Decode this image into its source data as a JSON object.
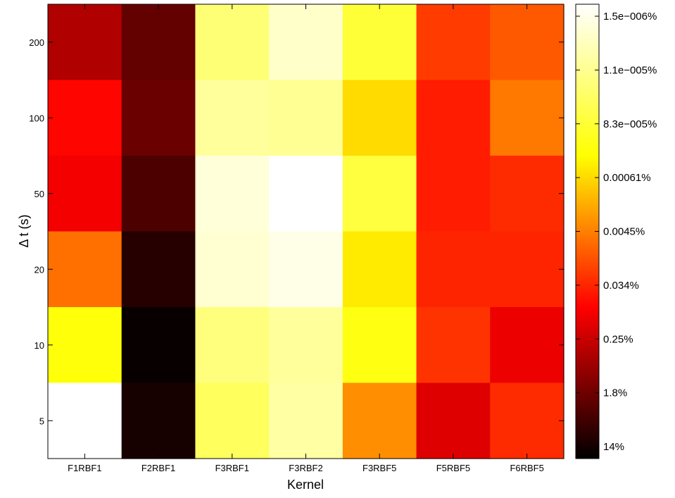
{
  "chart_data": {
    "type": "heatmap",
    "xlabel": "Kernel",
    "ylabel": "Δ t (s)",
    "x_categories": [
      "F1RBF1",
      "F2RBF1",
      "F3RBF1",
      "F3RBF2",
      "F3RBF5",
      "F5RBF5",
      "F6RBF5"
    ],
    "y_categories": [
      "200",
      "100",
      "50",
      "20",
      "10",
      "5"
    ],
    "color_scale": "hot (log)",
    "colorbar_ticks": [
      "1.5e−006%",
      "1.1e−005%",
      "8.3e−005%",
      "0.00061%",
      "0.0045%",
      "0.034%",
      "0.25%",
      "1.8%",
      "14%"
    ],
    "cell_levels_note": "values are colorbar position, 0 = 14% (black) at bottom, 1 = 1.5e-006% (white) at top",
    "levels": [
      [
        0.23,
        0.13,
        0.82,
        0.93,
        0.74,
        0.41,
        0.45
      ],
      [
        0.34,
        0.14,
        0.87,
        0.86,
        0.62,
        0.37,
        0.49
      ],
      [
        0.32,
        0.1,
        0.95,
        1.0,
        0.75,
        0.37,
        0.39
      ],
      [
        0.48,
        0.05,
        0.94,
        0.97,
        0.64,
        0.38,
        0.38
      ],
      [
        0.68,
        0.01,
        0.83,
        0.87,
        0.69,
        0.4,
        0.31
      ],
      [
        1.0,
        0.03,
        0.79,
        0.88,
        0.52,
        0.29,
        0.39
      ]
    ]
  }
}
